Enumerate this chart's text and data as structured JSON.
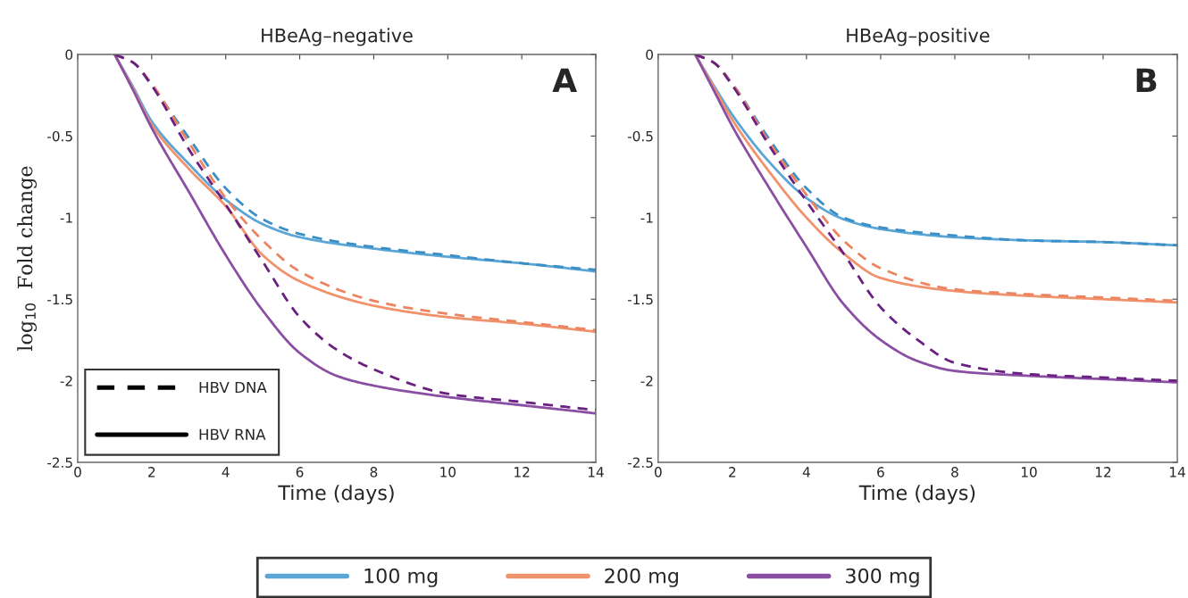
{
  "chart_data": [
    {
      "type": "line",
      "title": "HBeAg–negative",
      "xlabel": "Time (days)",
      "ylabel": "log$_{10}$  Fold change",
      "xlim": [
        0,
        14
      ],
      "xticks": [
        0,
        2,
        4,
        6,
        8,
        10,
        12,
        14
      ],
      "ylim": [
        -2.5,
        0
      ],
      "yticks": [
        -2.5,
        -2,
        -1.5,
        -1,
        -0.5,
        0
      ],
      "grid": false,
      "legend": "bottom left",
      "annotations": [
        "A"
      ],
      "series": [
        {
          "color": "#5ba6d6",
          "line_style": "solid",
          "x": [
            1,
            1.5,
            2,
            3,
            4,
            5,
            6,
            8,
            10,
            12,
            14
          ],
          "values": [
            0,
            -0.2,
            -0.41,
            -0.67,
            -0.89,
            -1.04,
            -1.12,
            -1.19,
            -1.24,
            -1.28,
            -1.33
          ]
        },
        {
          "color": "#f0926c",
          "line_style": "solid",
          "x": [
            1,
            1.5,
            2,
            3,
            4,
            5,
            6,
            8,
            10,
            12,
            14
          ],
          "values": [
            0,
            -0.21,
            -0.43,
            -0.7,
            -0.93,
            -1.23,
            -1.39,
            -1.54,
            -1.61,
            -1.65,
            -1.7
          ]
        },
        {
          "color": "#8a4fa3",
          "line_style": "solid",
          "x": [
            1,
            1.5,
            2,
            3,
            4,
            5,
            6,
            7,
            8,
            10,
            12,
            14
          ],
          "values": [
            0,
            -0.22,
            -0.45,
            -0.84,
            -1.23,
            -1.57,
            -1.83,
            -1.97,
            -2.03,
            -2.1,
            -2.15,
            -2.2
          ]
        },
        {
          "color": "#3b8fc6",
          "line_style": "dashed",
          "x": [
            1,
            1.5,
            2,
            3,
            4,
            5,
            6,
            8,
            10,
            12,
            14
          ],
          "values": [
            0,
            -0.05,
            -0.19,
            -0.51,
            -0.82,
            -1.01,
            -1.1,
            -1.18,
            -1.23,
            -1.28,
            -1.32
          ]
        },
        {
          "color": "#ec8460",
          "line_style": "dashed",
          "x": [
            1,
            1.5,
            2,
            3,
            4,
            5,
            6,
            8,
            10,
            12,
            14
          ],
          "values": [
            0,
            -0.05,
            -0.18,
            -0.54,
            -0.88,
            -1.14,
            -1.33,
            -1.51,
            -1.59,
            -1.64,
            -1.69
          ]
        },
        {
          "color": "#6a2080",
          "line_style": "dashed",
          "x": [
            1,
            1.5,
            2,
            3,
            4,
            5,
            6,
            7,
            8,
            10,
            12,
            14
          ],
          "values": [
            0,
            -0.05,
            -0.19,
            -0.58,
            -0.92,
            -1.27,
            -1.61,
            -1.81,
            -1.93,
            -2.08,
            -2.13,
            -2.18
          ]
        },
        {
          "name": "HBV DNA",
          "color": "#000000",
          "line_style": "dashed"
        },
        {
          "name": "HBV RNA",
          "color": "#000000",
          "line_style": "solid"
        }
      ]
    },
    {
      "type": "line",
      "title": "HBeAg–positive",
      "xlabel": "Time (days)",
      "xlim": [
        0,
        14
      ],
      "xticks": [
        0,
        2,
        4,
        6,
        8,
        10,
        12,
        14
      ],
      "ylim": [
        -2.5,
        0
      ],
      "yticks": [
        -2.5,
        -2,
        -1.5,
        -1,
        -0.5,
        0
      ],
      "grid": false,
      "annotations": [
        "B"
      ],
      "legend": "bottom left",
      "series": [
        {
          "name": "100 mg",
          "color": "#5ba6d6",
          "line_style": "solid",
          "x": [
            1,
            1.5,
            2,
            3,
            4,
            5,
            6,
            8,
            10,
            12,
            14
          ],
          "values": [
            0,
            -0.19,
            -0.37,
            -0.66,
            -0.88,
            -1.01,
            -1.07,
            -1.12,
            -1.14,
            -1.15,
            -1.17
          ]
        },
        {
          "name": "200 mg",
          "color": "#f0926c",
          "line_style": "solid",
          "x": [
            1,
            1.5,
            2,
            3,
            4,
            5,
            6,
            8,
            10,
            12,
            14
          ],
          "values": [
            0,
            -0.2,
            -0.4,
            -0.72,
            -1.0,
            -1.22,
            -1.37,
            -1.45,
            -1.48,
            -1.5,
            -1.52
          ]
        },
        {
          "name": "300 mg",
          "color": "#8a4fa3",
          "line_style": "solid",
          "x": [
            1,
            1.5,
            2,
            3,
            4,
            5,
            6,
            7,
            8,
            10,
            12,
            14
          ],
          "values": [
            0,
            -0.22,
            -0.44,
            -0.82,
            -1.18,
            -1.53,
            -1.75,
            -1.88,
            -1.94,
            -1.97,
            -1.99,
            -2.01
          ]
        },
        {
          "color": "#3b8fc6",
          "line_style": "dashed",
          "x": [
            1,
            1.5,
            2,
            3,
            4,
            5,
            6,
            8,
            10,
            12,
            14
          ],
          "values": [
            0,
            -0.05,
            -0.18,
            -0.52,
            -0.82,
            -1.0,
            -1.06,
            -1.11,
            -1.14,
            -1.15,
            -1.17
          ]
        },
        {
          "color": "#ec8460",
          "line_style": "dashed",
          "x": [
            1,
            1.5,
            2,
            3,
            4,
            5,
            6,
            8,
            10,
            12,
            14
          ],
          "values": [
            0,
            -0.05,
            -0.18,
            -0.54,
            -0.86,
            -1.14,
            -1.31,
            -1.44,
            -1.47,
            -1.49,
            -1.51
          ]
        },
        {
          "color": "#6a2080",
          "line_style": "dashed",
          "x": [
            1,
            1.5,
            2,
            3,
            4,
            5,
            6,
            7,
            8,
            10,
            12,
            14
          ],
          "values": [
            0,
            -0.05,
            -0.19,
            -0.56,
            -0.9,
            -1.22,
            -1.55,
            -1.75,
            -1.89,
            -1.96,
            -1.98,
            -2.0
          ]
        }
      ]
    }
  ]
}
